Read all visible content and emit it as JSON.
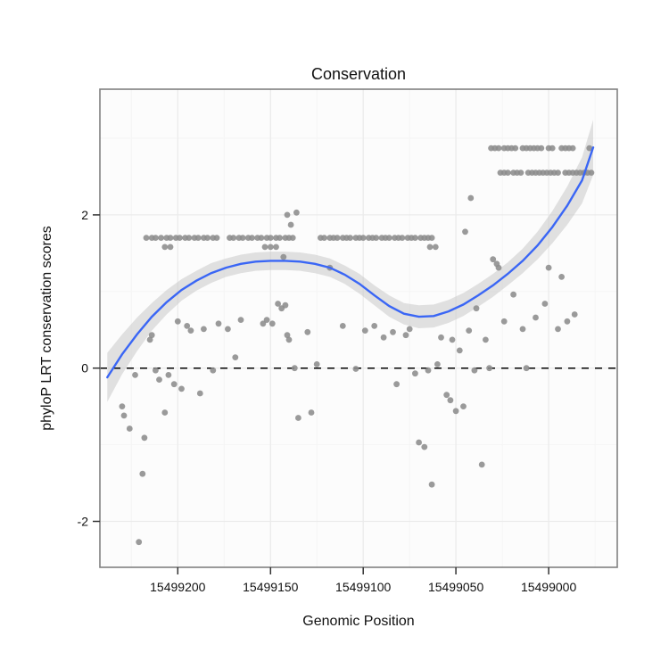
{
  "chart_data": {
    "type": "scatter",
    "title": "Conservation",
    "xlabel": "Genomic Position",
    "ylabel": "phyloP LRT conservation scores",
    "x_axis": {
      "ticks": [
        15499200,
        15499150,
        15499100,
        15499050,
        15499000
      ],
      "left_value": 15499242,
      "right_value": 15498963,
      "direction": "decreasing"
    },
    "y_axis": {
      "ticks": [
        -2,
        0,
        2
      ],
      "min": -2.6,
      "max": 3.64
    },
    "reference_line_y": 0,
    "legend": "none",
    "grid": "major-and-minor",
    "colors": {
      "point": "#8c8c8c",
      "smooth_line": "#3a66f5",
      "band": "#c9c9c9",
      "panel": "#fcfcfc",
      "grid_major": "#ebebeb",
      "grid_minor": "#f5f5f5",
      "frame": "#808080",
      "tick": "#333333",
      "reference_line": "#000000"
    },
    "smooth_line": [
      [
        15499238,
        -0.12
      ],
      [
        15499230,
        0.18
      ],
      [
        15499222,
        0.44
      ],
      [
        15499214,
        0.67
      ],
      [
        15499206,
        0.86
      ],
      [
        15499198,
        1.02
      ],
      [
        15499190,
        1.14
      ],
      [
        15499182,
        1.24
      ],
      [
        15499174,
        1.31
      ],
      [
        15499166,
        1.36
      ],
      [
        15499158,
        1.39
      ],
      [
        15499150,
        1.4
      ],
      [
        15499142,
        1.4
      ],
      [
        15499134,
        1.39
      ],
      [
        15499126,
        1.36
      ],
      [
        15499118,
        1.31
      ],
      [
        15499110,
        1.22
      ],
      [
        15499102,
        1.1
      ],
      [
        15499094,
        0.95
      ],
      [
        15499086,
        0.81
      ],
      [
        15499078,
        0.71
      ],
      [
        15499070,
        0.67
      ],
      [
        15499062,
        0.68
      ],
      [
        15499054,
        0.74
      ],
      [
        15499046,
        0.83
      ],
      [
        15499038,
        0.95
      ],
      [
        15499030,
        1.08
      ],
      [
        15499022,
        1.23
      ],
      [
        15499014,
        1.4
      ],
      [
        15499006,
        1.6
      ],
      [
        15498998,
        1.84
      ],
      [
        15498990,
        2.12
      ],
      [
        15498982,
        2.45
      ],
      [
        15498976,
        2.88
      ]
    ],
    "confidence_band": [
      [
        15499238,
        -0.44,
        0.2
      ],
      [
        15499230,
        -0.08,
        0.44
      ],
      [
        15499222,
        0.22,
        0.66
      ],
      [
        15499214,
        0.49,
        0.85
      ],
      [
        15499206,
        0.7,
        1.02
      ],
      [
        15499198,
        0.88,
        1.16
      ],
      [
        15499190,
        1.01,
        1.27
      ],
      [
        15499182,
        1.11,
        1.37
      ],
      [
        15499174,
        1.19,
        1.43
      ],
      [
        15499166,
        1.24,
        1.48
      ],
      [
        15499158,
        1.27,
        1.51
      ],
      [
        15499150,
        1.28,
        1.52
      ],
      [
        15499142,
        1.28,
        1.52
      ],
      [
        15499134,
        1.27,
        1.51
      ],
      [
        15499126,
        1.24,
        1.48
      ],
      [
        15499118,
        1.19,
        1.43
      ],
      [
        15499110,
        1.1,
        1.34
      ],
      [
        15499102,
        0.97,
        1.23
      ],
      [
        15499094,
        0.82,
        1.08
      ],
      [
        15499086,
        0.67,
        0.95
      ],
      [
        15499078,
        0.57,
        0.85
      ],
      [
        15499070,
        0.52,
        0.82
      ],
      [
        15499062,
        0.53,
        0.83
      ],
      [
        15499054,
        0.59,
        0.89
      ],
      [
        15499046,
        0.68,
        0.98
      ],
      [
        15499038,
        0.8,
        1.1
      ],
      [
        15499030,
        0.93,
        1.23
      ],
      [
        15499022,
        1.08,
        1.38
      ],
      [
        15499014,
        1.24,
        1.56
      ],
      [
        15499006,
        1.42,
        1.78
      ],
      [
        15498998,
        1.63,
        2.05
      ],
      [
        15498990,
        1.87,
        2.37
      ],
      [
        15498982,
        2.15,
        2.75
      ],
      [
        15498976,
        2.52,
        3.24
      ]
    ],
    "points": [
      [
        15499230,
        -0.5
      ],
      [
        15499229,
        -0.62
      ],
      [
        15499226,
        -0.79
      ],
      [
        15499223,
        -0.09
      ],
      [
        15499221,
        -2.27
      ],
      [
        15499219,
        -1.38
      ],
      [
        15499218,
        -0.91
      ],
      [
        15499215,
        0.37
      ],
      [
        15499214,
        0.43
      ],
      [
        15499212,
        -0.03
      ],
      [
        15499210,
        -0.15
      ],
      [
        15499207,
        -0.58
      ],
      [
        15499205,
        -0.09
      ],
      [
        15499202,
        -0.21
      ],
      [
        15499200,
        0.61
      ],
      [
        15499198,
        -0.27
      ],
      [
        15499195,
        0.55
      ],
      [
        15499193,
        0.49
      ],
      [
        15499188,
        -0.33
      ],
      [
        15499186,
        0.51
      ],
      [
        15499181,
        -0.03
      ],
      [
        15499178,
        0.58
      ],
      [
        15499173,
        0.51
      ],
      [
        15499169,
        0.14
      ],
      [
        15499166,
        0.63
      ],
      [
        15499217,
        1.7
      ],
      [
        15499214,
        1.7
      ],
      [
        15499212,
        1.7
      ],
      [
        15499209,
        1.7
      ],
      [
        15499206,
        1.7
      ],
      [
        15499204,
        1.7
      ],
      [
        15499201,
        1.7
      ],
      [
        15499199,
        1.7
      ],
      [
        15499196,
        1.7
      ],
      [
        15499194,
        1.7
      ],
      [
        15499191,
        1.7
      ],
      [
        15499189,
        1.7
      ],
      [
        15499186,
        1.7
      ],
      [
        15499184,
        1.7
      ],
      [
        15499181,
        1.7
      ],
      [
        15499179,
        1.7
      ],
      [
        15499172,
        1.7
      ],
      [
        15499170,
        1.7
      ],
      [
        15499167,
        1.7
      ],
      [
        15499165,
        1.7
      ],
      [
        15499162,
        1.7
      ],
      [
        15499160,
        1.7
      ],
      [
        15499157,
        1.7
      ],
      [
        15499155,
        1.7
      ],
      [
        15499152,
        1.7
      ],
      [
        15499150,
        1.7
      ],
      [
        15499147,
        1.7
      ],
      [
        15499145,
        1.7
      ],
      [
        15499142,
        1.7
      ],
      [
        15499140,
        1.7
      ],
      [
        15499138,
        1.7
      ],
      [
        15499207,
        1.58
      ],
      [
        15499204,
        1.58
      ],
      [
        15499153,
        1.58
      ],
      [
        15499150,
        1.58
      ],
      [
        15499147,
        1.58
      ],
      [
        15499064,
        1.58
      ],
      [
        15499061,
        1.58
      ],
      [
        15499143,
        1.45
      ],
      [
        15499141,
        2.0
      ],
      [
        15499139,
        1.87
      ],
      [
        15499136,
        2.03
      ],
      [
        15499154,
        0.58
      ],
      [
        15499152,
        0.63
      ],
      [
        15499149,
        0.58
      ],
      [
        15499146,
        0.84
      ],
      [
        15499144,
        0.78
      ],
      [
        15499142,
        0.82
      ],
      [
        15499141,
        0.43
      ],
      [
        15499140,
        0.37
      ],
      [
        15499137,
        0.0
      ],
      [
        15499135,
        -0.65
      ],
      [
        15499130,
        0.47
      ],
      [
        15499128,
        -0.58
      ],
      [
        15499125,
        0.05
      ],
      [
        15499118,
        1.31
      ],
      [
        15499111,
        0.55
      ],
      [
        15499104,
        -0.01
      ],
      [
        15499099,
        0.49
      ],
      [
        15499094,
        0.55
      ],
      [
        15499089,
        0.4
      ],
      [
        15499084,
        0.47
      ],
      [
        15499082,
        -0.21
      ],
      [
        15499077,
        0.43
      ],
      [
        15499075,
        0.51
      ],
      [
        15499123,
        1.7
      ],
      [
        15499121,
        1.7
      ],
      [
        15499118,
        1.7
      ],
      [
        15499116,
        1.7
      ],
      [
        15499114,
        1.7
      ],
      [
        15499111,
        1.7
      ],
      [
        15499109,
        1.7
      ],
      [
        15499107,
        1.7
      ],
      [
        15499104,
        1.7
      ],
      [
        15499102,
        1.7
      ],
      [
        15499100,
        1.7
      ],
      [
        15499097,
        1.7
      ],
      [
        15499095,
        1.7
      ],
      [
        15499093,
        1.7
      ],
      [
        15499090,
        1.7
      ],
      [
        15499088,
        1.7
      ],
      [
        15499086,
        1.7
      ],
      [
        15499083,
        1.7
      ],
      [
        15499081,
        1.7
      ],
      [
        15499079,
        1.7
      ],
      [
        15499076,
        1.7
      ],
      [
        15499074,
        1.7
      ],
      [
        15499072,
        1.7
      ],
      [
        15499069,
        1.7
      ],
      [
        15499067,
        1.7
      ],
      [
        15499065,
        1.7
      ],
      [
        15499063,
        1.7
      ],
      [
        15499072,
        -0.07
      ],
      [
        15499070,
        -0.97
      ],
      [
        15499067,
        -1.03
      ],
      [
        15499065,
        -0.03
      ],
      [
        15499063,
        -1.52
      ],
      [
        15499060,
        0.05
      ],
      [
        15499058,
        0.4
      ],
      [
        15499055,
        -0.35
      ],
      [
        15499053,
        -0.42
      ],
      [
        15499052,
        0.37
      ],
      [
        15499050,
        -0.56
      ],
      [
        15499048,
        0.23
      ],
      [
        15499046,
        -0.5
      ],
      [
        15499045,
        1.78
      ],
      [
        15499043,
        0.49
      ],
      [
        15499042,
        2.22
      ],
      [
        15499040,
        -0.03
      ],
      [
        15499039,
        0.78
      ],
      [
        15499036,
        -1.26
      ],
      [
        15499034,
        0.37
      ],
      [
        15499032,
        0.0
      ],
      [
        15499030,
        1.42
      ],
      [
        15499028,
        1.36
      ],
      [
        15499027,
        1.31
      ],
      [
        15499024,
        0.61
      ],
      [
        15499019,
        0.96
      ],
      [
        15499014,
        0.51
      ],
      [
        15499012,
        0.0
      ],
      [
        15499007,
        0.66
      ],
      [
        15499002,
        0.84
      ],
      [
        15499000,
        1.31
      ],
      [
        15498995,
        0.51
      ],
      [
        15498993,
        1.19
      ],
      [
        15498990,
        0.61
      ],
      [
        15498986,
        0.7
      ],
      [
        15499031,
        2.87
      ],
      [
        15499029,
        2.87
      ],
      [
        15499027,
        2.87
      ],
      [
        15499024,
        2.87
      ],
      [
        15499022,
        2.87
      ],
      [
        15499020,
        2.87
      ],
      [
        15499018,
        2.87
      ],
      [
        15499014,
        2.87
      ],
      [
        15499012,
        2.87
      ],
      [
        15499010,
        2.87
      ],
      [
        15499008,
        2.87
      ],
      [
        15499006,
        2.87
      ],
      [
        15499004,
        2.87
      ],
      [
        15499000,
        2.87
      ],
      [
        15498998,
        2.87
      ],
      [
        15498993,
        2.87
      ],
      [
        15498991,
        2.87
      ],
      [
        15498989,
        2.87
      ],
      [
        15498987,
        2.87
      ],
      [
        15498978,
        2.87
      ],
      [
        15499026,
        2.55
      ],
      [
        15499024,
        2.55
      ],
      [
        15499022,
        2.55
      ],
      [
        15499019,
        2.55
      ],
      [
        15499017,
        2.55
      ],
      [
        15499015,
        2.55
      ],
      [
        15499011,
        2.55
      ],
      [
        15499009,
        2.55
      ],
      [
        15499007,
        2.55
      ],
      [
        15499005,
        2.55
      ],
      [
        15499003,
        2.55
      ],
      [
        15499001,
        2.55
      ],
      [
        15498999,
        2.55
      ],
      [
        15498997,
        2.55
      ],
      [
        15498995,
        2.55
      ],
      [
        15498991,
        2.55
      ],
      [
        15498989,
        2.55
      ],
      [
        15498987,
        2.55
      ],
      [
        15498985,
        2.55
      ],
      [
        15498983,
        2.55
      ],
      [
        15498981,
        2.55
      ],
      [
        15498979,
        2.55
      ],
      [
        15498977,
        2.55
      ]
    ]
  }
}
